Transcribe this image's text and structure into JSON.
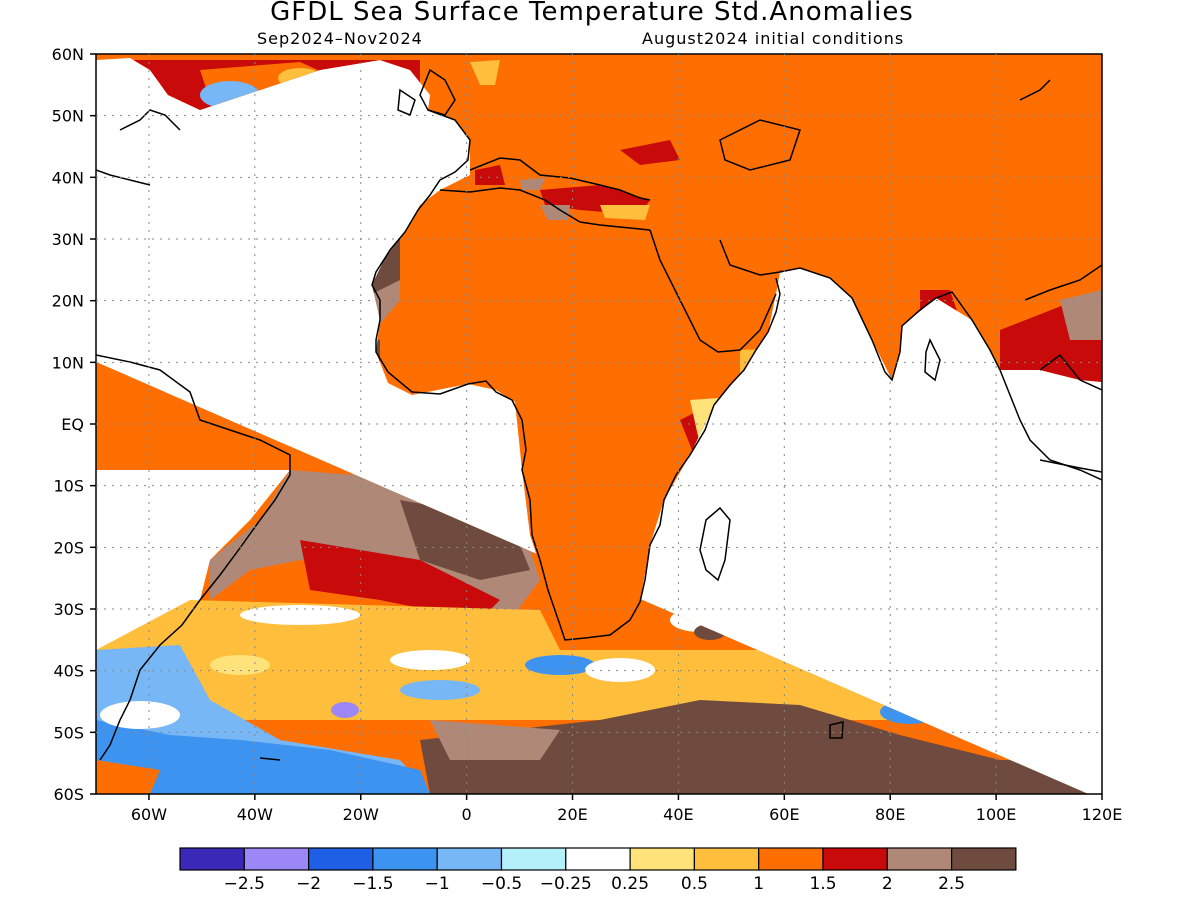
{
  "title": "GFDL Sea Surface Temperature Std.Anomalies",
  "period": "Sep2024–Nov2024",
  "init": "August2024 initial conditions",
  "lat_labels": [
    "60N",
    "50N",
    "40N",
    "30N",
    "20N",
    "10N",
    "EQ",
    "10S",
    "20S",
    "30S",
    "40S",
    "50S",
    "60S"
  ],
  "lon_labels": [
    "60W",
    "40W",
    "20W",
    "0",
    "20E",
    "40E",
    "60E",
    "80E",
    "100E",
    "120E"
  ],
  "extent": {
    "lon": [
      -70,
      120
    ],
    "lat": [
      -60,
      60
    ]
  },
  "grid": "dotted",
  "colorbar": {
    "colors": [
      "#3a28b8",
      "#9b87f5",
      "#1f5fe6",
      "#3c93f0",
      "#78b7f5",
      "#b4f0fa",
      "#ffffff",
      "#ffe27a",
      "#ffbe3c",
      "#ff6e00",
      "#c80a0a",
      "#b08878",
      "#6e4b3e"
    ],
    "labels": [
      "−2.5",
      "−2",
      "−1.5",
      "−1",
      "−0.5",
      "−0.25",
      "0.25",
      "0.5",
      "1",
      "1.5",
      "2",
      "2.5"
    ]
  }
}
